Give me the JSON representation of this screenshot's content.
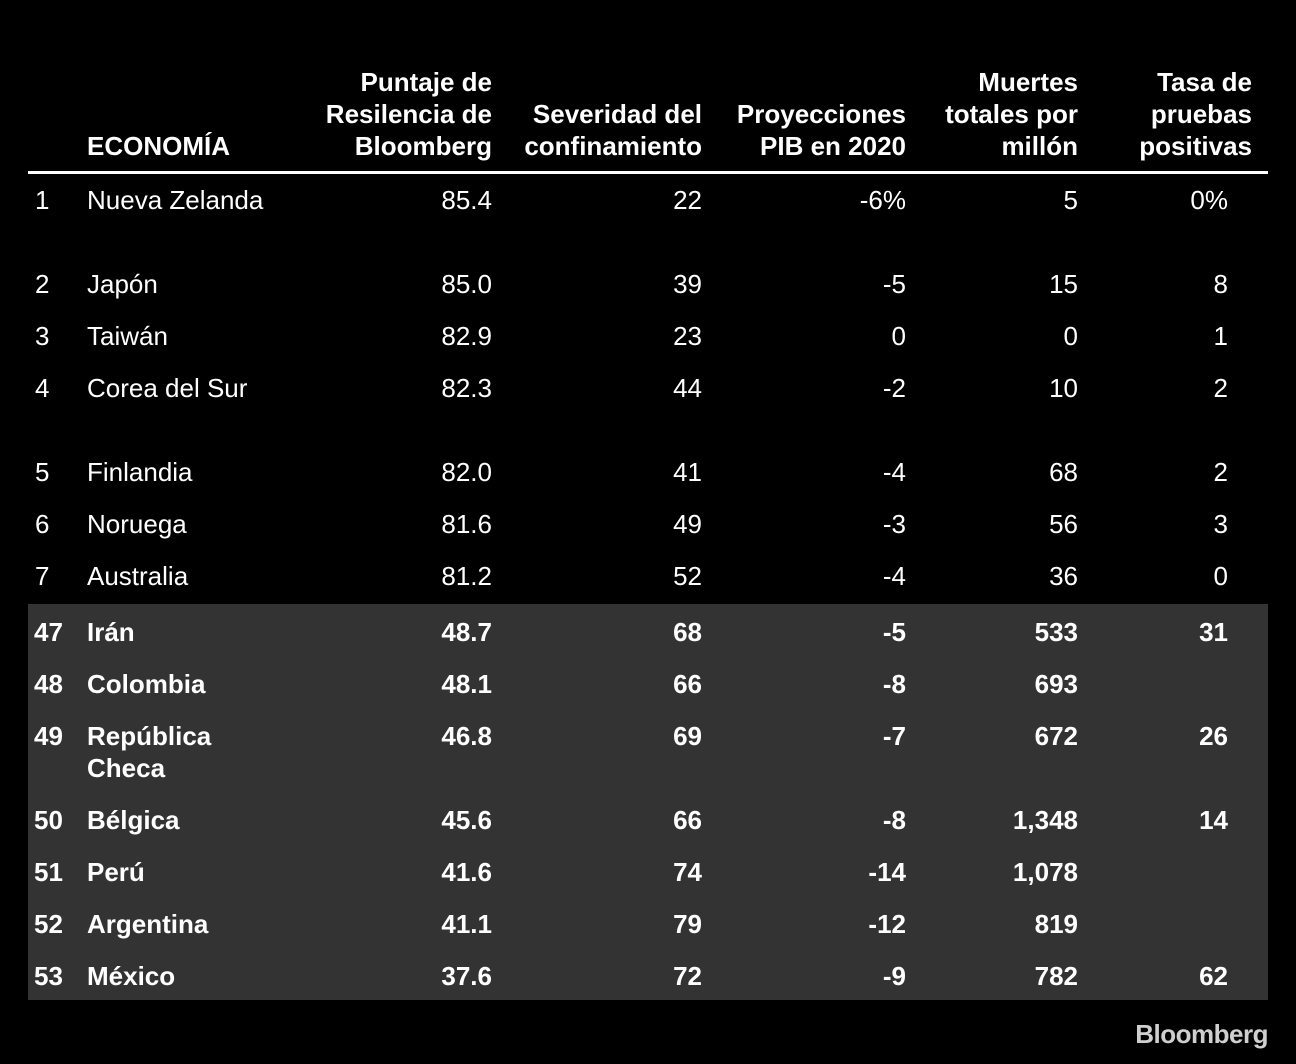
{
  "chart_data": {
    "type": "table",
    "columns": [
      "ECONOMÍA",
      "Puntaje de Resilencia de Bloomberg",
      "Severidad del confinamiento",
      "Proyecciones PIB en 2020",
      "Muertes totales por millón",
      "Tasa de pruebas positivas"
    ],
    "top_rows": [
      {
        "rank": "1",
        "name": "Nueva Zelanda",
        "score": "85.4",
        "severity": "22",
        "gdp": "-6%",
        "deaths": "5",
        "positive": "0%"
      },
      {
        "rank": "2",
        "name": "Japón",
        "score": "85.0",
        "severity": "39",
        "gdp": "-5",
        "deaths": "15",
        "positive": "8"
      },
      {
        "rank": "3",
        "name": "Taiwán",
        "score": "82.9",
        "severity": "23",
        "gdp": "0",
        "deaths": "0",
        "positive": "1"
      },
      {
        "rank": "4",
        "name": "Corea del Sur",
        "score": "82.3",
        "severity": "44",
        "gdp": "-2",
        "deaths": "10",
        "positive": "2"
      },
      {
        "rank": "5",
        "name": "Finlandia",
        "score": "82.0",
        "severity": "41",
        "gdp": "-4",
        "deaths": "68",
        "positive": "2"
      },
      {
        "rank": "6",
        "name": "Noruega",
        "score": "81.6",
        "severity": "49",
        "gdp": "-3",
        "deaths": "56",
        "positive": "3"
      },
      {
        "rank": "7",
        "name": "Australia",
        "score": "81.2",
        "severity": "52",
        "gdp": "-4",
        "deaths": "36",
        "positive": "0"
      }
    ],
    "bottom_rows": [
      {
        "rank": "47",
        "name": "Irán",
        "score": "48.7",
        "severity": "68",
        "gdp": "-5",
        "deaths": "533",
        "positive": "31"
      },
      {
        "rank": "48",
        "name": "Colombia",
        "score": "48.1",
        "severity": "66",
        "gdp": "-8",
        "deaths": "693",
        "positive": ""
      },
      {
        "rank": "49",
        "name": "República Checa",
        "score": "46.8",
        "severity": "69",
        "gdp": "-7",
        "deaths": "672",
        "positive": "26"
      },
      {
        "rank": "50",
        "name": "Bélgica",
        "score": "45.6",
        "severity": "66",
        "gdp": "-8",
        "deaths": "1,348",
        "positive": "14"
      },
      {
        "rank": "51",
        "name": "Perú",
        "score": "41.6",
        "severity": "74",
        "gdp": "-14",
        "deaths": "1,078",
        "positive": ""
      },
      {
        "rank": "52",
        "name": "Argentina",
        "score": "41.1",
        "severity": "79",
        "gdp": "-12",
        "deaths": "819",
        "positive": ""
      },
      {
        "rank": "53",
        "name": "México",
        "score": "37.6",
        "severity": "72",
        "gdp": "-9",
        "deaths": "782",
        "positive": "62"
      }
    ]
  },
  "branding": {
    "logo_text": "Bloomberg"
  },
  "colors": {
    "background": "#000000",
    "text": "#ffffff",
    "highlight_band": "#333333"
  }
}
